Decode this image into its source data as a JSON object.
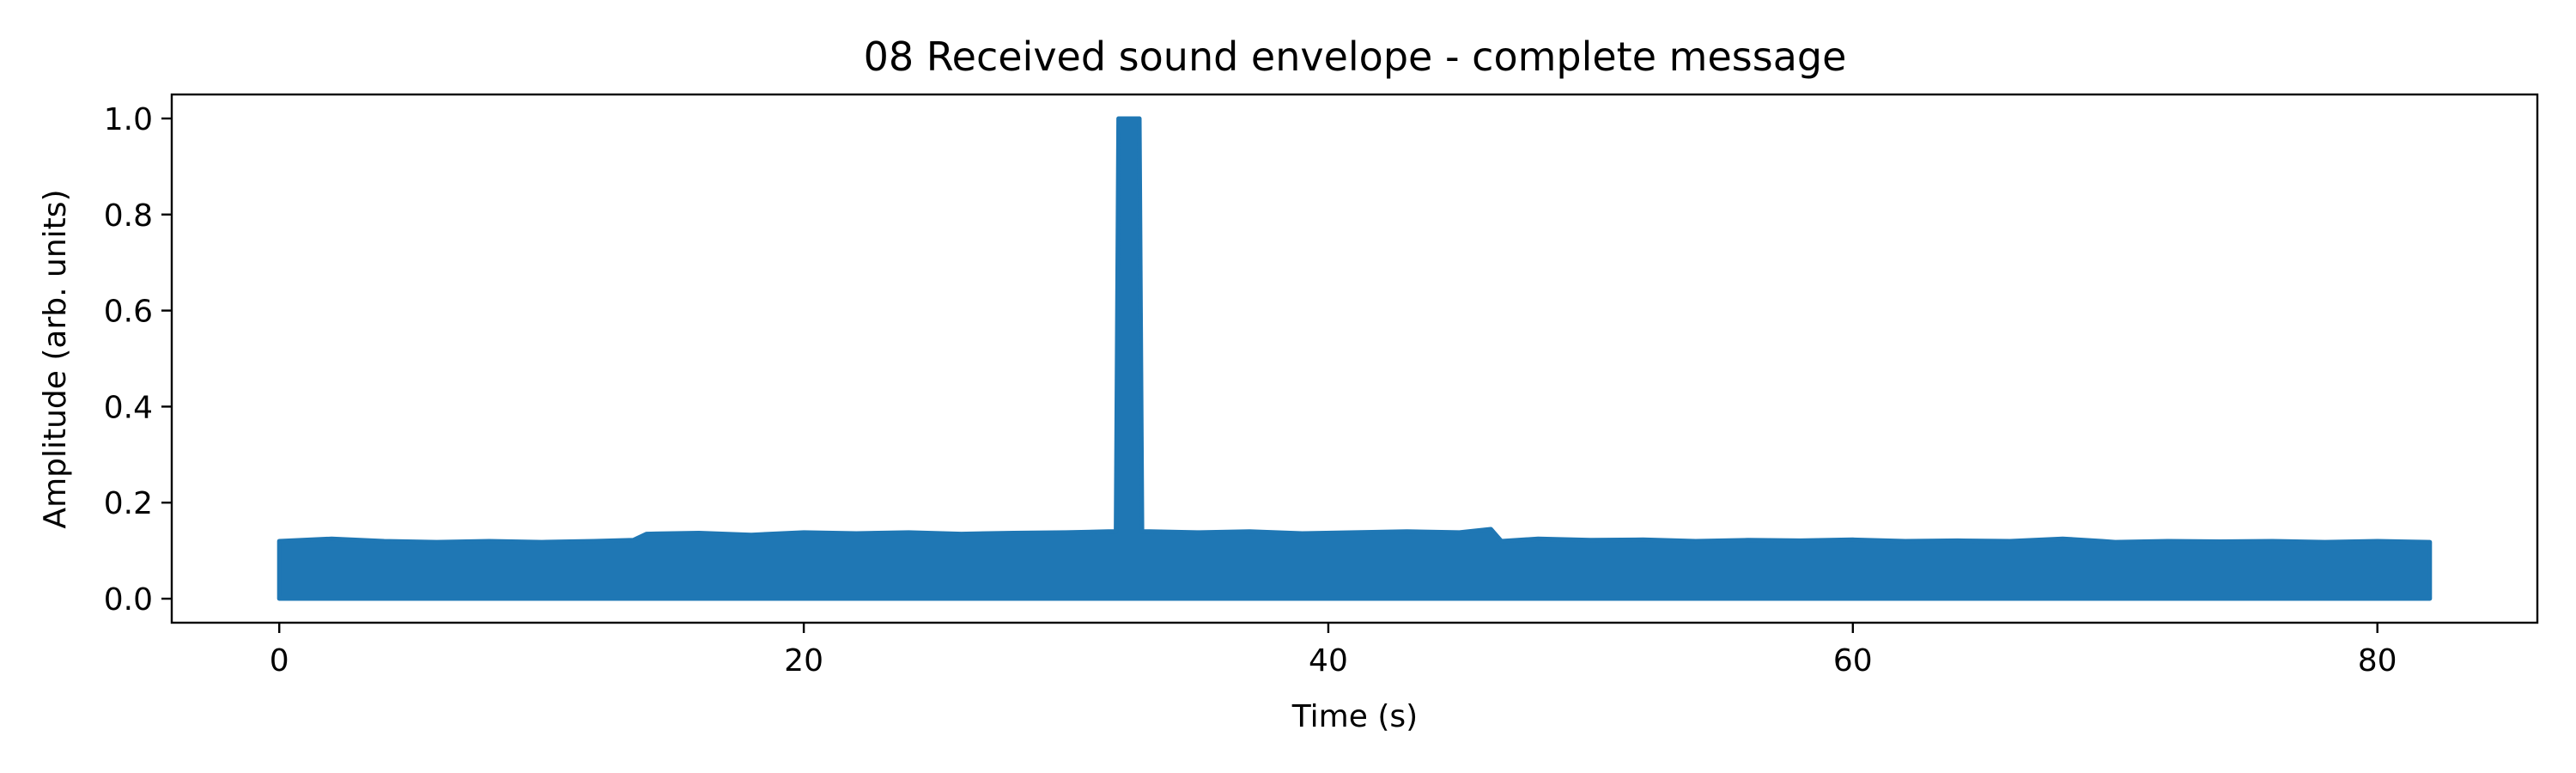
{
  "chart_data": {
    "type": "area",
    "title": "08 Received sound envelope - complete message",
    "xlabel": "Time (s)",
    "ylabel": "Amplitude (arb. units)",
    "xlim": [
      -4.1,
      86.1
    ],
    "ylim": [
      -0.05,
      1.05
    ],
    "xticks": [
      0,
      20,
      40,
      60,
      80
    ],
    "xtick_labels": [
      "0",
      "20",
      "40",
      "60",
      "80"
    ],
    "yticks": [
      0.0,
      0.2,
      0.4,
      0.6,
      0.8,
      1.0
    ],
    "ytick_labels": [
      "0.0",
      "0.2",
      "0.4",
      "0.6",
      "0.8",
      "1.0"
    ],
    "grid": false,
    "legend": "none",
    "series_color": "#1f77b4",
    "series": [
      {
        "x": [
          0,
          2,
          4,
          6,
          8,
          10,
          12,
          13.5,
          14,
          16,
          18,
          20,
          22,
          24,
          26,
          28,
          30,
          31.6,
          31.9,
          32.0,
          32.8,
          32.9,
          33.2,
          35,
          37,
          39,
          41,
          43,
          45,
          46.2,
          46.6,
          48,
          50,
          52,
          54,
          56,
          58,
          60,
          62,
          64,
          66,
          68,
          69.5,
          70,
          72,
          74,
          76,
          78,
          80,
          82
        ],
        "y_lower": [
          0,
          0,
          0,
          0,
          0,
          0,
          0,
          0,
          0,
          0,
          0,
          0,
          0,
          0,
          0,
          0,
          0,
          0,
          0,
          0,
          0,
          0,
          0,
          0,
          0,
          0,
          0,
          0,
          0,
          0,
          0,
          0,
          0,
          0,
          0,
          0,
          0,
          0,
          0,
          0,
          0,
          0,
          0,
          0,
          0,
          0,
          0,
          0,
          0,
          0
        ],
        "y_upper": [
          0.12,
          0.125,
          0.12,
          0.118,
          0.12,
          0.118,
          0.12,
          0.122,
          0.135,
          0.137,
          0.133,
          0.138,
          0.136,
          0.138,
          0.135,
          0.137,
          0.138,
          0.14,
          0.14,
          1.0,
          1.0,
          0.14,
          0.14,
          0.138,
          0.14,
          0.136,
          0.138,
          0.14,
          0.138,
          0.145,
          0.12,
          0.125,
          0.122,
          0.123,
          0.12,
          0.122,
          0.121,
          0.123,
          0.12,
          0.121,
          0.12,
          0.125,
          0.12,
          0.118,
          0.12,
          0.119,
          0.12,
          0.118,
          0.12,
          0.118
        ]
      }
    ]
  }
}
